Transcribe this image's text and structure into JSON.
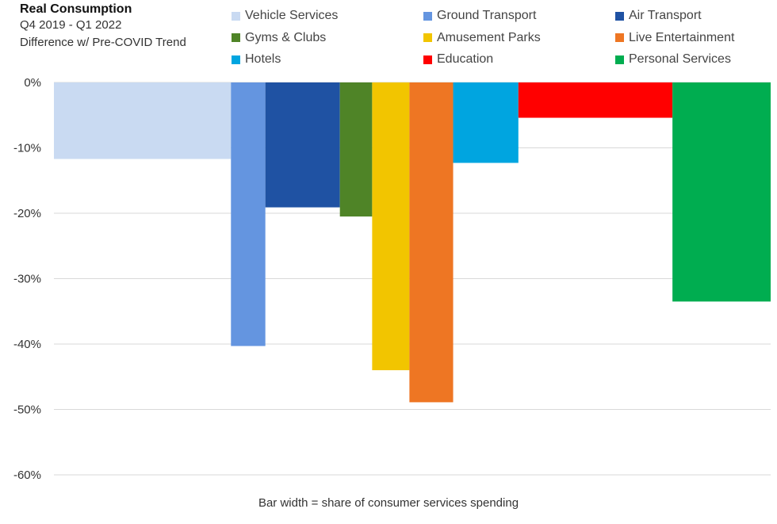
{
  "header": {
    "title": "Real Consumption",
    "subtitle_1": "Q4 2019 - Q1 2022",
    "subtitle_2": "Difference w/ Pre-COVID Trend"
  },
  "chart_data": {
    "type": "bar",
    "variable_width": true,
    "title": "Real Consumption",
    "subtitle": "Q4 2019 - Q1 2022 Difference w/ Pre-COVID Trend",
    "xlabel": "Bar width = share of consumer services spending",
    "ylabel": "",
    "ylim": [
      -60,
      0
    ],
    "yticks": [
      0,
      -10,
      -20,
      -30,
      -40,
      -50,
      -60
    ],
    "ytick_labels": [
      "0%",
      "-10%",
      "-20%",
      "-30%",
      "-40%",
      "-50%",
      "-60%"
    ],
    "grid": true,
    "legend_position": "top",
    "series": [
      {
        "name": "Vehicle Services",
        "value": -11.7,
        "share": 24.7,
        "color": "#c9daf2"
      },
      {
        "name": "Ground Transport",
        "value": -40.3,
        "share": 4.8,
        "color": "#6495e0"
      },
      {
        "name": "Air Transport",
        "value": -19.1,
        "share": 10.4,
        "color": "#1f52a3"
      },
      {
        "name": "Gyms & Clubs",
        "value": -20.5,
        "share": 4.5,
        "color": "#4f8427"
      },
      {
        "name": "Amusement Parks",
        "value": -44.0,
        "share": 5.2,
        "color": "#f2c500"
      },
      {
        "name": "Live Entertainment",
        "value": -48.9,
        "share": 6.1,
        "color": "#ee7623"
      },
      {
        "name": "Hotels",
        "value": -12.3,
        "share": 9.1,
        "color": "#00a5e0"
      },
      {
        "name": "Education",
        "value": -5.4,
        "share": 21.5,
        "color": "#ff0000"
      },
      {
        "name": "Personal Services",
        "value": -33.5,
        "share": 13.7,
        "color": "#00ad50"
      }
    ]
  }
}
